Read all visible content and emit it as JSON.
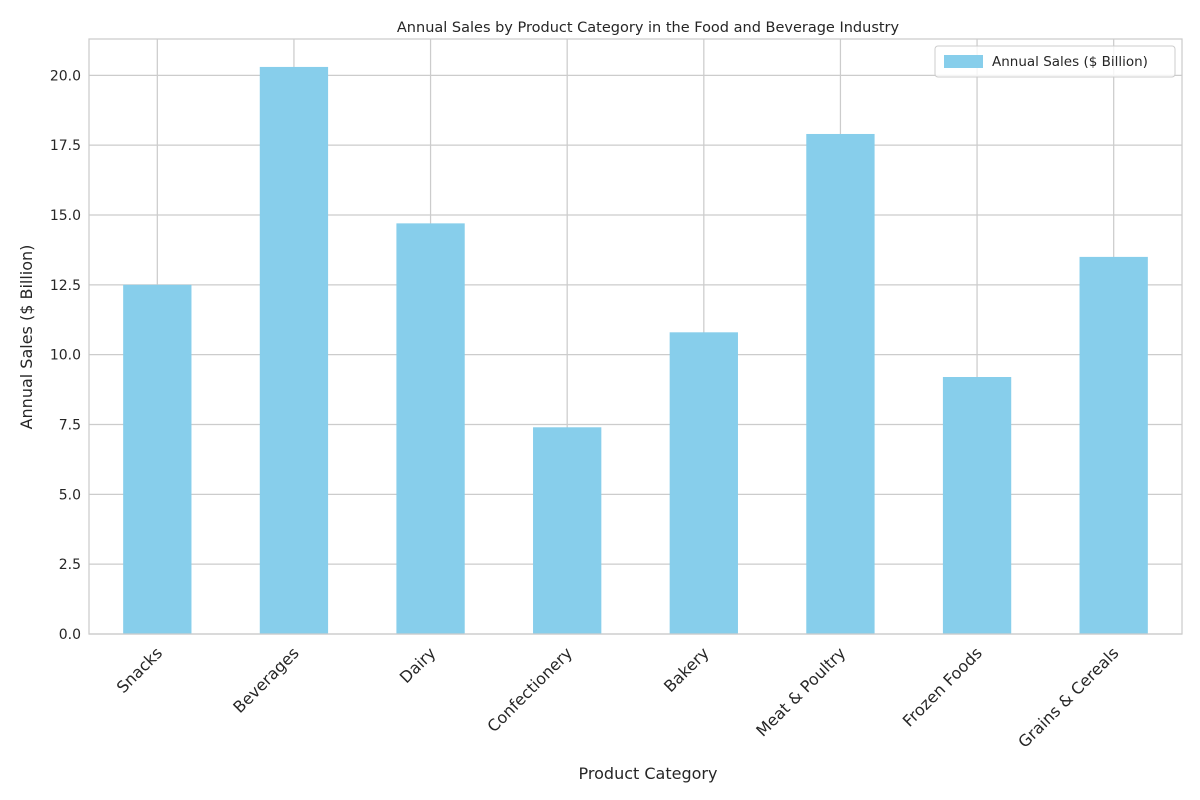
{
  "chart_data": {
    "type": "bar",
    "title": "Annual Sales by Product Category in the Food and Beverage Industry",
    "xlabel": "Product Category",
    "ylabel": "Annual Sales ($ Billion)",
    "categories": [
      "Snacks",
      "Beverages",
      "Dairy",
      "Confectionery",
      "Bakery",
      "Meat & Poultry",
      "Frozen Foods",
      "Grains & Cereals"
    ],
    "series": [
      {
        "name": "Annual Sales ($ Billion)",
        "values": [
          12.5,
          20.3,
          14.7,
          7.4,
          10.8,
          17.9,
          9.2,
          13.5
        ],
        "color": "#87CEEB"
      }
    ],
    "ylim": [
      0,
      21.3
    ],
    "yticks": [
      0.0,
      2.5,
      5.0,
      7.5,
      10.0,
      12.5,
      15.0,
      17.5,
      20.0
    ],
    "ytick_labels": [
      "0.0",
      "2.5",
      "5.0",
      "7.5",
      "10.0",
      "12.5",
      "15.0",
      "17.5",
      "20.0"
    ],
    "grid": true,
    "legend": "top-right",
    "colors": {
      "grid": "#cccccc",
      "spine": "#cccccc",
      "text": "#262626",
      "background": "#ffffff"
    }
  }
}
